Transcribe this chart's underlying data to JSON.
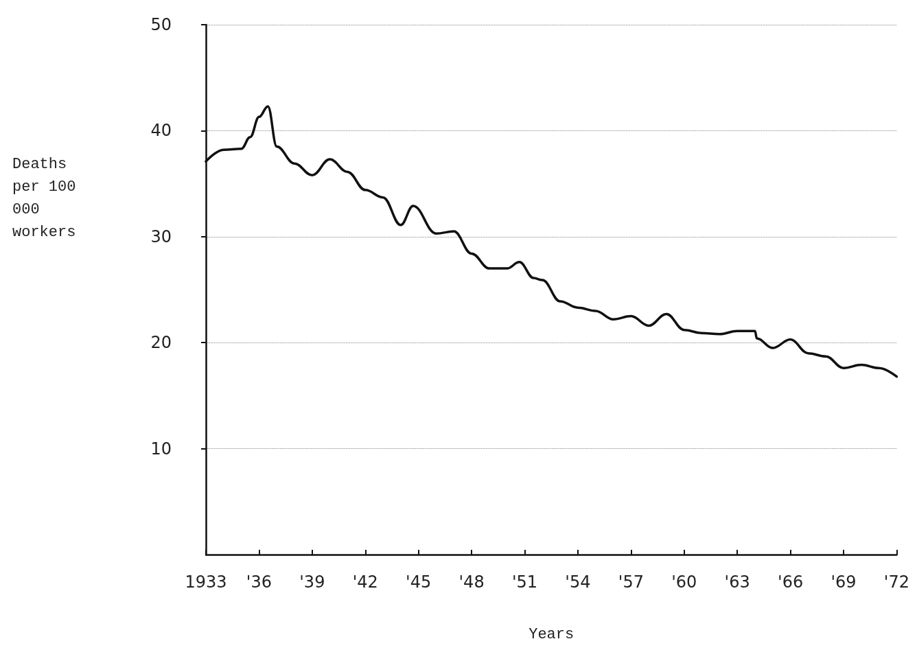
{
  "chart_data": {
    "type": "line",
    "xlabel": "Years",
    "ylabel": "Deaths per 100 000 workers",
    "x": [
      1933,
      1934,
      1935,
      1935.5,
      1936,
      1936.5,
      1937,
      1938,
      1939,
      1940,
      1941,
      1942,
      1943,
      1944,
      1944.7,
      1946,
      1947,
      1948,
      1949,
      1950,
      1950.7,
      1951.5,
      1952,
      1953,
      1954,
      1955,
      1956,
      1957,
      1958,
      1959,
      1960,
      1961,
      1962,
      1963,
      1964,
      1964.1,
      1965,
      1966,
      1967,
      1968,
      1969,
      1970,
      1971,
      1972
    ],
    "series": [
      {
        "color": "#111111",
        "values": [
          37.1,
          38.2,
          38.3,
          39.4,
          41.3,
          42.3,
          38.5,
          36.9,
          35.8,
          37.3,
          36.1,
          34.4,
          33.7,
          31.1,
          32.9,
          30.3,
          30.5,
          28.4,
          27.0,
          27.0,
          27.6,
          26.1,
          25.9,
          23.9,
          23.3,
          23.0,
          22.2,
          22.5,
          21.6,
          22.7,
          21.2,
          20.9,
          20.8,
          21.1,
          21.1,
          20.4,
          19.5,
          20.3,
          19.0,
          18.7,
          17.6,
          17.9,
          17.6,
          16.8
        ]
      }
    ],
    "xlim": [
      1933,
      1972
    ],
    "ylim": [
      0,
      50
    ],
    "xticks": [
      1933,
      {
        "value": 1936,
        "label": "'36"
      },
      {
        "value": 1939,
        "label": "'39"
      },
      {
        "value": 1942,
        "label": "'42"
      },
      {
        "value": 1945,
        "label": "'45"
      },
      {
        "value": 1948,
        "label": "'48"
      },
      {
        "value": 1951,
        "label": "'51"
      },
      {
        "value": 1954,
        "label": "'54"
      },
      {
        "value": 1957,
        "label": "'57"
      },
      {
        "value": 1960,
        "label": "'60"
      },
      {
        "value": 1963,
        "label": "'63"
      },
      {
        "value": 1966,
        "label": "'66"
      },
      {
        "value": 1969,
        "label": "'69"
      },
      {
        "value": 1972,
        "label": "'72"
      }
    ],
    "yticks": [
      10,
      20,
      30,
      40,
      50
    ],
    "grid": "y",
    "marker": "none",
    "line_style": "solid"
  }
}
